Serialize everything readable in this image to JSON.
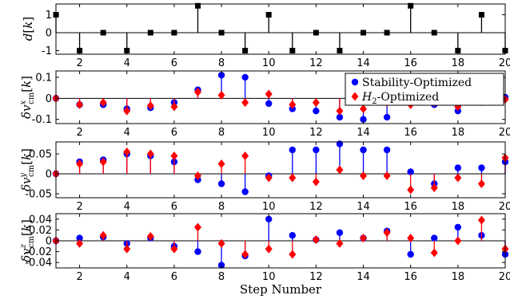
{
  "chart_data": [
    {
      "type": "stem",
      "ylabel": "d[k]",
      "xlim": [
        1,
        20
      ],
      "ylim": [
        -1.2,
        1.6
      ],
      "yticks": [
        -1,
        0,
        1
      ],
      "xticks": [
        2,
        4,
        6,
        8,
        10,
        12,
        14,
        16,
        18,
        20
      ],
      "series": [
        {
          "color": "#000000",
          "marker": "square",
          "x": [
            1,
            2,
            3,
            4,
            5,
            6,
            7,
            8,
            9,
            10,
            11,
            12,
            13,
            14,
            15,
            16,
            17,
            18,
            19,
            20
          ],
          "values": [
            1,
            -1,
            0,
            -1,
            0,
            0,
            1.5,
            0,
            -1,
            1,
            -1,
            0,
            -1,
            0,
            0,
            1.5,
            0,
            -1,
            1,
            -1
          ]
        }
      ]
    },
    {
      "type": "stem",
      "ylabel": "δv_cm^x[k]",
      "xlim": [
        1,
        20
      ],
      "ylim": [
        -0.12,
        0.13
      ],
      "yticks": [
        -0.1,
        0,
        0.1
      ],
      "xticks": [
        2,
        4,
        6,
        8,
        10,
        12,
        14,
        16,
        18,
        20
      ],
      "legend": {
        "position": "top-right"
      },
      "series": [
        {
          "name": "Stability-Optimized",
          "color": "#0000ff",
          "marker": "circle",
          "x": [
            1,
            2,
            3,
            4,
            5,
            6,
            7,
            8,
            9,
            10,
            11,
            12,
            13,
            14,
            15,
            16,
            17,
            18,
            19,
            20
          ],
          "values": [
            0,
            -0.03,
            -0.03,
            -0.05,
            -0.045,
            -0.02,
            0.04,
            0.11,
            0.1,
            -0.025,
            -0.05,
            -0.06,
            -0.09,
            -0.1,
            -0.09,
            -0.02,
            -0.03,
            -0.06,
            -0.02,
            0.005
          ]
        },
        {
          "name": "H2-Optimized",
          "color": "#ff0000",
          "marker": "diamond",
          "x": [
            1,
            2,
            3,
            4,
            5,
            6,
            7,
            8,
            9,
            10,
            11,
            12,
            13,
            14,
            15,
            16,
            17,
            18,
            19,
            20
          ],
          "values": [
            0,
            -0.03,
            -0.02,
            -0.06,
            -0.035,
            -0.04,
            0.03,
            0.015,
            -0.02,
            0.02,
            -0.03,
            -0.02,
            -0.06,
            -0.05,
            -0.02,
            -0.03,
            -0.02,
            -0.04,
            -0.01,
            -0.005
          ]
        }
      ]
    },
    {
      "type": "stem",
      "ylabel": "δv_cm^y[k]",
      "xlim": [
        1,
        20
      ],
      "ylim": [
        -0.06,
        0.08
      ],
      "yticks": [
        -0.05,
        0,
        0.05
      ],
      "xticks": [
        2,
        4,
        6,
        8,
        10,
        12,
        14,
        16,
        18,
        20
      ],
      "series": [
        {
          "name": "Stability-Optimized",
          "color": "#0000ff",
          "marker": "circle",
          "x": [
            1,
            2,
            3,
            4,
            5,
            6,
            7,
            8,
            9,
            10,
            11,
            12,
            13,
            14,
            15,
            16,
            17,
            18,
            19,
            20
          ],
          "values": [
            0,
            0.03,
            0.035,
            0.05,
            0.045,
            0.03,
            -0.015,
            -0.025,
            -0.045,
            -0.005,
            0.06,
            0.06,
            0.075,
            0.06,
            0.06,
            0.005,
            -0.025,
            0.015,
            0.015,
            0.03
          ]
        },
        {
          "name": "H2-Optimized",
          "color": "#ff0000",
          "marker": "diamond",
          "x": [
            1,
            2,
            3,
            4,
            5,
            6,
            7,
            8,
            9,
            10,
            11,
            12,
            13,
            14,
            15,
            16,
            17,
            18,
            19,
            20
          ],
          "values": [
            0,
            0.025,
            0.03,
            0.055,
            0.05,
            0.045,
            -0.005,
            0.025,
            0.045,
            -0.01,
            -0.01,
            -0.02,
            0.01,
            -0.005,
            -0.005,
            -0.04,
            -0.035,
            -0.01,
            -0.025,
            0.04
          ]
        }
      ]
    },
    {
      "type": "stem",
      "ylabel": "δv_cm^z[k]",
      "xlabel": "Step Number",
      "xlim": [
        1,
        20
      ],
      "ylim": [
        -0.05,
        0.05
      ],
      "yticks": [
        -0.04,
        -0.02,
        0,
        0.02,
        0.04
      ],
      "xticks": [
        2,
        4,
        6,
        8,
        10,
        12,
        14,
        16,
        18,
        20
      ],
      "series": [
        {
          "name": "Stability-Optimized",
          "color": "#0000ff",
          "marker": "circle",
          "x": [
            1,
            2,
            3,
            4,
            5,
            6,
            7,
            8,
            9,
            10,
            11,
            12,
            13,
            14,
            15,
            16,
            17,
            18,
            19,
            20
          ],
          "values": [
            0,
            0.005,
            0.007,
            -0.005,
            0.005,
            -0.01,
            -0.02,
            -0.045,
            -0.028,
            0.04,
            0.01,
            0.002,
            0.015,
            0.005,
            0.018,
            -0.025,
            0.005,
            0.025,
            0.01,
            -0.025
          ]
        },
        {
          "name": "H2-Optimized",
          "color": "#ff0000",
          "marker": "diamond",
          "x": [
            1,
            2,
            3,
            4,
            5,
            6,
            7,
            8,
            9,
            10,
            11,
            12,
            13,
            14,
            15,
            16,
            17,
            18,
            19,
            20
          ],
          "values": [
            0,
            -0.005,
            0.01,
            -0.015,
            0.008,
            -0.015,
            0.025,
            -0.005,
            -0.025,
            -0.015,
            -0.025,
            0.002,
            -0.005,
            0.005,
            0.015,
            0.005,
            -0.022,
            0,
            0.038,
            -0.015
          ]
        }
      ]
    }
  ]
}
